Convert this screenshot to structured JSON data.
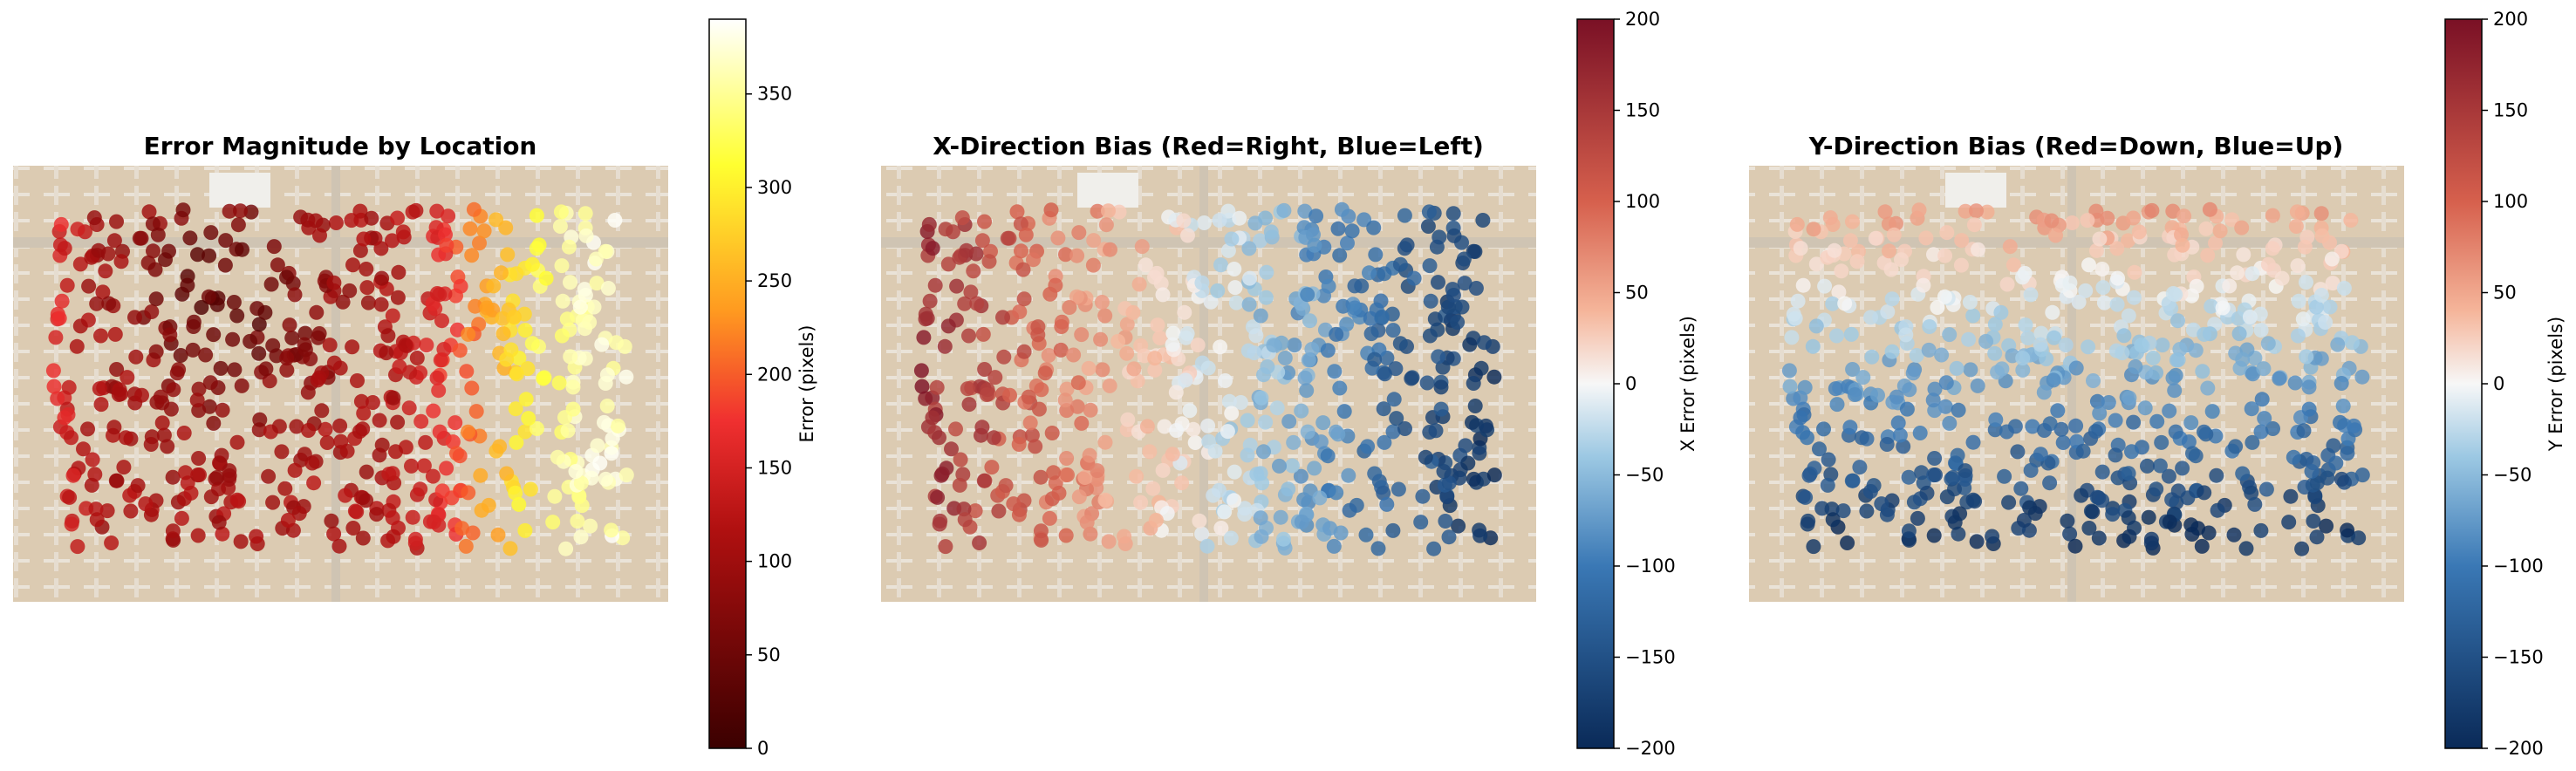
{
  "chart_data": [
    {
      "type": "scatter",
      "title": "Error Magnitude by Location",
      "background": "aerial photo of an aircraft boneyard",
      "colormap": "hot",
      "colorbar": {
        "label": "Error (pixels)",
        "range": [
          0,
          390
        ],
        "ticks": [
          "0",
          "50",
          "100",
          "150",
          "200",
          "250",
          "300",
          "350"
        ]
      },
      "trend": "Low error at left-center and upper-center (dark red), rising to very high error toward the right side (yellow/white)",
      "grid": false
    },
    {
      "type": "scatter",
      "title": "X-Direction Bias (Red=Right, Blue=Left)",
      "background": "aerial photo of an aircraft boneyard",
      "colormap": "RdBu_r",
      "colorbar": {
        "label": "X Error (pixels)",
        "range": [
          -200,
          200
        ],
        "ticks": [
          "−200",
          "−150",
          "−100",
          "−50",
          "0",
          "50",
          "100",
          "150",
          "200"
        ]
      },
      "trend": "Strong positive (red) bias at far left, near-zero in the middle, strongly negative (dark blue) on the right half",
      "grid": false
    },
    {
      "type": "scatter",
      "title": "Y-Direction Bias (Red=Down, Blue=Up)",
      "background": "aerial photo of an aircraft boneyard",
      "colormap": "RdBu_r",
      "colorbar": {
        "label": "Y Error (pixels)",
        "range": [
          -200,
          200
        ],
        "ticks": [
          "−200",
          "−150",
          "−100",
          "−50",
          "0",
          "50",
          "100",
          "150",
          "200"
        ]
      },
      "trend": "Mild positive (light red) bias at top rows, near-zero in the middle, strongly negative (dark blue) at the bottom rows",
      "grid": false
    }
  ]
}
